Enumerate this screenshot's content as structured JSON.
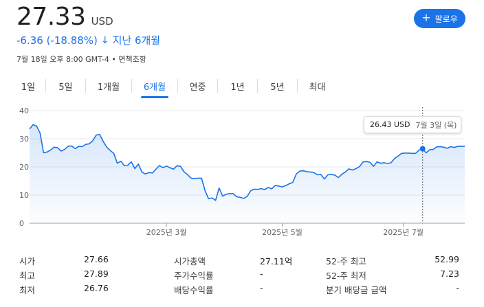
{
  "header": {
    "price": "27.33",
    "currency": "USD",
    "change": "-6.36 (-18.88%)",
    "change_arrow": "↓",
    "period_label": "지난 6개월",
    "timestamp": "7월 18일 오후 8:00 GMT-4 • 면책조항",
    "follow_button": {
      "icon": "+",
      "label": "팔로우"
    }
  },
  "tabs": [
    {
      "label": "1일",
      "active": false
    },
    {
      "label": "5일",
      "active": false
    },
    {
      "label": "1개월",
      "active": false
    },
    {
      "label": "6개월",
      "active": true
    },
    {
      "label": "연중",
      "active": false
    },
    {
      "label": "1년",
      "active": false
    },
    {
      "label": "5년",
      "active": false
    },
    {
      "label": "최대",
      "active": false
    }
  ],
  "tooltip": {
    "value": "26.43 USD",
    "date": "7월 3일 (목)"
  },
  "chart_data": {
    "type": "area",
    "color": "#1a73e8",
    "y_ticks": [
      "40",
      "30",
      "20",
      "10",
      "0"
    ],
    "ylim": [
      0,
      40
    ],
    "x_ticks": [
      "2025년 3월",
      "2025년 5월",
      "2025년 7월"
    ],
    "grid": true,
    "points": [
      [
        0,
        33.5
      ],
      [
        2,
        35
      ],
      [
        4,
        34.5
      ],
      [
        6,
        32
      ],
      [
        8,
        25
      ],
      [
        10,
        25.3
      ],
      [
        12,
        26
      ],
      [
        14,
        27
      ],
      [
        16,
        26.8
      ],
      [
        18,
        25.6
      ],
      [
        20,
        26.2
      ],
      [
        22,
        27.4
      ],
      [
        24,
        27.4
      ],
      [
        26,
        26.5
      ],
      [
        28,
        27.3
      ],
      [
        30,
        27.2
      ],
      [
        32,
        28
      ],
      [
        34,
        28.2
      ],
      [
        36,
        29.3
      ],
      [
        38,
        31.3
      ],
      [
        40,
        31.5
      ],
      [
        42,
        29
      ],
      [
        44,
        27
      ],
      [
        46,
        25.8
      ],
      [
        48,
        24.8
      ],
      [
        50,
        21.3
      ],
      [
        52,
        22
      ],
      [
        54,
        20.5
      ],
      [
        56,
        20.6
      ],
      [
        58,
        21.8
      ],
      [
        60,
        19.4
      ],
      [
        62,
        21
      ],
      [
        64,
        18.2
      ],
      [
        66,
        17.5
      ],
      [
        68,
        18
      ],
      [
        70,
        17.8
      ],
      [
        72,
        19.2
      ],
      [
        74,
        20.5
      ],
      [
        76,
        19.7
      ],
      [
        78,
        20.3
      ],
      [
        80,
        19.7
      ],
      [
        82,
        19.2
      ],
      [
        84,
        20.4
      ],
      [
        86,
        20.2
      ],
      [
        88,
        18.3
      ],
      [
        90,
        17.3
      ],
      [
        92,
        16
      ],
      [
        94,
        15.8
      ],
      [
        96,
        16
      ],
      [
        98,
        16
      ],
      [
        100,
        11.6
      ],
      [
        102,
        8.7
      ],
      [
        104,
        9
      ],
      [
        106,
        8.1
      ],
      [
        108,
        12.5
      ],
      [
        110,
        9.6
      ],
      [
        112,
        10.3
      ],
      [
        114,
        10.5
      ],
      [
        116,
        10.5
      ],
      [
        118,
        9.4
      ],
      [
        120,
        9.2
      ],
      [
        122,
        8.8
      ],
      [
        124,
        9.5
      ],
      [
        126,
        11.5
      ],
      [
        128,
        12.1
      ],
      [
        130,
        12
      ],
      [
        132,
        12.3
      ],
      [
        134,
        11.9
      ],
      [
        136,
        12.7
      ],
      [
        138,
        12.2
      ],
      [
        140,
        13.4
      ],
      [
        142,
        13.2
      ],
      [
        144,
        12.9
      ],
      [
        146,
        13.4
      ],
      [
        148,
        14
      ],
      [
        150,
        14.5
      ],
      [
        152,
        17.5
      ],
      [
        154,
        18.5
      ],
      [
        156,
        18.6
      ],
      [
        158,
        18.3
      ],
      [
        160,
        18.2
      ],
      [
        162,
        18
      ],
      [
        164,
        17.2
      ],
      [
        166,
        17.3
      ],
      [
        168,
        15.7
      ],
      [
        170,
        17.2
      ],
      [
        172,
        17.3
      ],
      [
        174,
        17.1
      ],
      [
        176,
        16.2
      ],
      [
        178,
        17.4
      ],
      [
        180,
        18.2
      ],
      [
        182,
        19.3
      ],
      [
        184,
        18.9
      ],
      [
        186,
        19.4
      ],
      [
        188,
        20.1
      ],
      [
        190,
        21.7
      ],
      [
        192,
        21.9
      ],
      [
        194,
        21.6
      ],
      [
        196,
        20.2
      ],
      [
        198,
        21.8
      ],
      [
        200,
        21.3
      ],
      [
        202,
        21.5
      ],
      [
        204,
        21.2
      ],
      [
        206,
        21.5
      ],
      [
        208,
        23
      ],
      [
        210,
        23.8
      ],
      [
        212,
        24.8
      ],
      [
        214,
        24.9
      ],
      [
        216,
        24.9
      ],
      [
        218,
        24.8
      ],
      [
        220,
        24.8
      ],
      [
        222,
        26
      ],
      [
        224,
        26.4
      ],
      [
        226,
        25
      ],
      [
        228,
        26.1
      ],
      [
        230,
        26.2
      ],
      [
        232,
        27.1
      ],
      [
        234,
        27.2
      ],
      [
        236,
        27
      ],
      [
        238,
        26.6
      ],
      [
        240,
        27.2
      ],
      [
        242,
        26.9
      ],
      [
        244,
        27.3
      ],
      [
        246,
        27.3
      ],
      [
        248,
        27.33
      ]
    ]
  },
  "stats": [
    {
      "label1": "시가",
      "value1": "27.66",
      "label2": "시가총액",
      "value2": "27.11억",
      "label3": "52-주 최고",
      "value3": "52.99"
    },
    {
      "label1": "최고",
      "value1": "27.89",
      "label2": "주가수익률",
      "value2": "-",
      "label3": "52-주 최저",
      "value3": "7.23"
    },
    {
      "label1": "최저",
      "value1": "26.76",
      "label2": "배당수익률",
      "value2": "-",
      "label3": "분기 배당금 금액",
      "value3": "-"
    }
  ]
}
